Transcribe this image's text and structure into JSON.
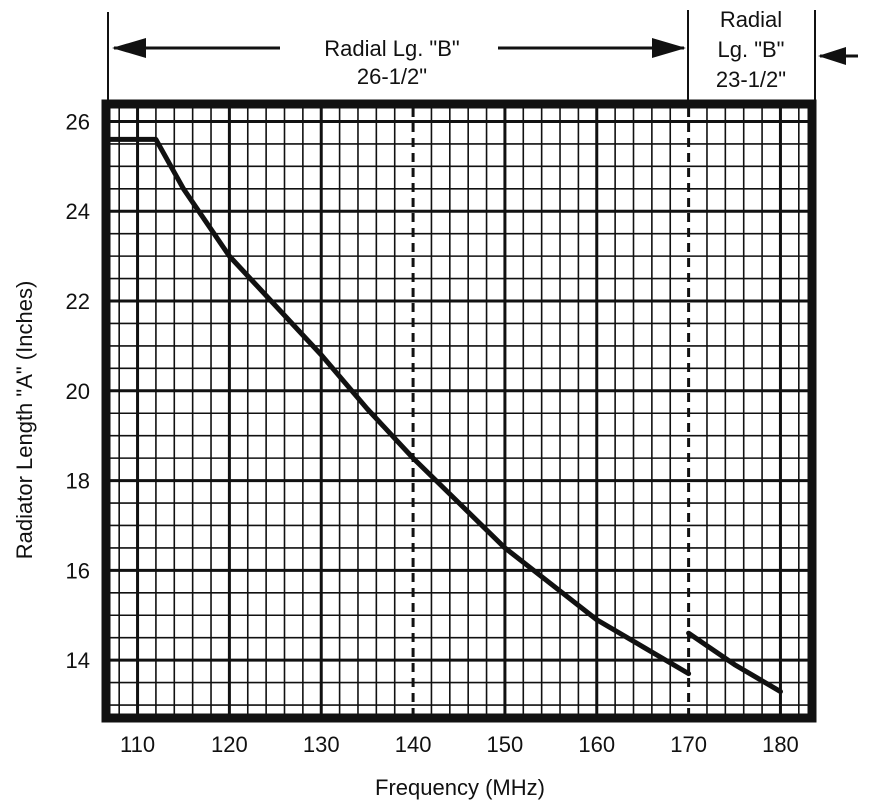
{
  "chart_data": {
    "type": "line",
    "xlabel": "Frequency (MHz)",
    "ylabel": "Radiator Length \"A\" (Inches)",
    "xlim": [
      107,
      183
    ],
    "ylim": [
      12.8,
      26.3
    ],
    "grid": true,
    "x_ticks": [
      "110",
      "120",
      "130",
      "140",
      "150",
      "160",
      "170",
      "180"
    ],
    "y_ticks": [
      "14",
      "16",
      "18",
      "20",
      "22",
      "24",
      "26"
    ],
    "series": [
      {
        "x": [
          107,
          112,
          115,
          120,
          125,
          130,
          135,
          140,
          145,
          150,
          155,
          160,
          165,
          170
        ],
        "y": [
          25.6,
          25.6,
          24.5,
          23.0,
          21.9,
          20.8,
          19.6,
          18.5,
          17.5,
          16.5,
          15.7,
          14.9,
          14.3,
          13.7
        ]
      },
      {
        "x": [
          170,
          175,
          180
        ],
        "y": [
          14.6,
          13.9,
          13.3
        ]
      }
    ],
    "annotations": [
      {
        "line1": "Radial Lg. \"B\"",
        "line2": "26-1/2\""
      },
      {
        "line1": "Radial",
        "line2": "Lg. \"B\"",
        "line3": "23-1/2\""
      }
    ]
  }
}
